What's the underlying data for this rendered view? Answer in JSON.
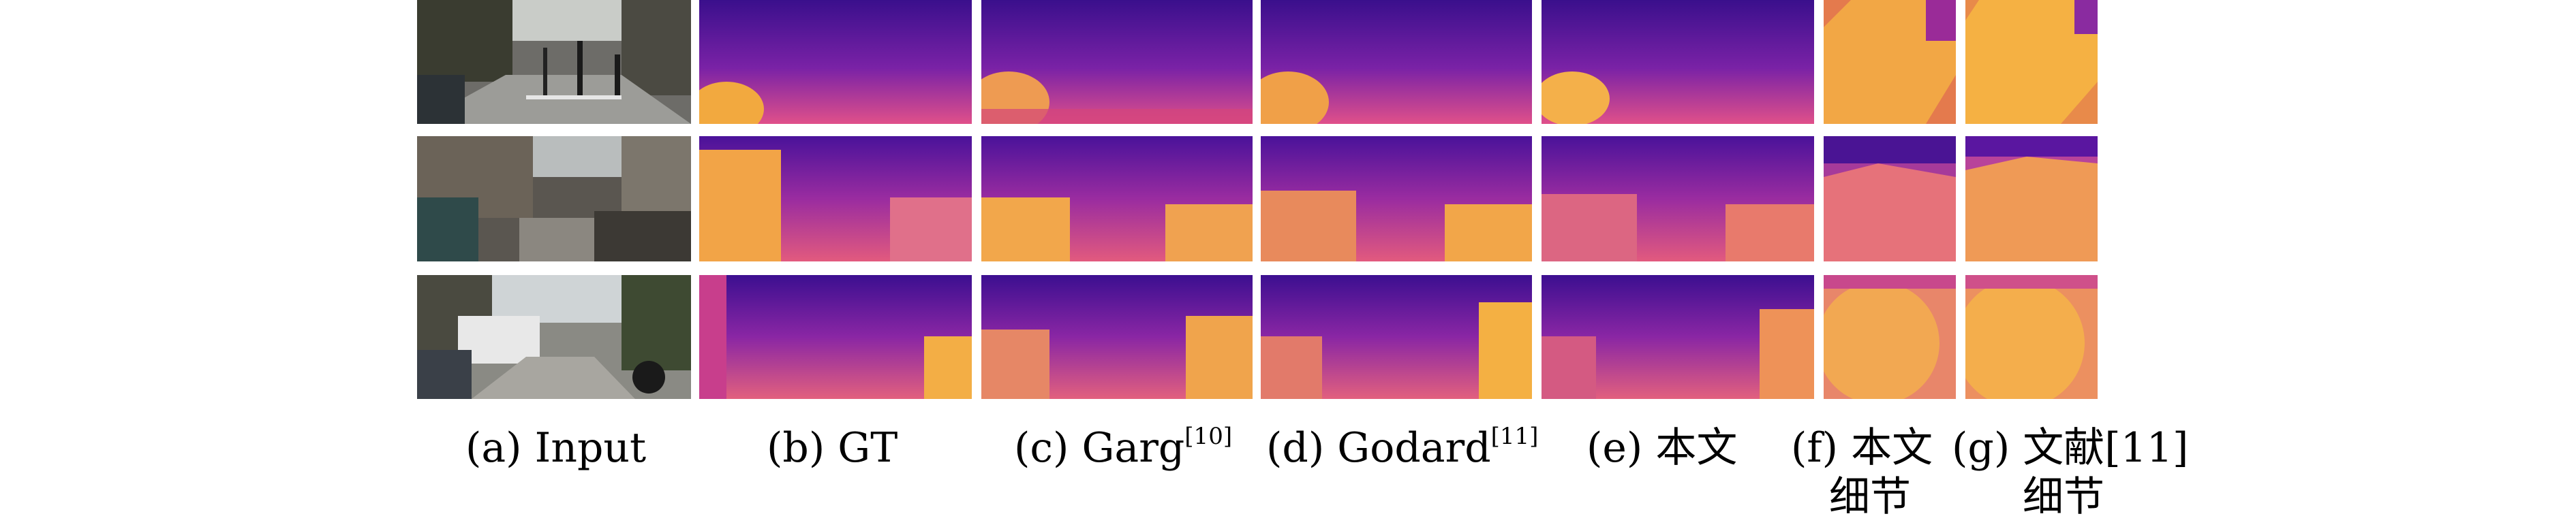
{
  "figure": {
    "columns": [
      {
        "label": "(a) Input"
      },
      {
        "label": "(b) GT"
      },
      {
        "label": "(c) Garg",
        "superscript": "[10]"
      },
      {
        "label": "(d) Godard",
        "superscript": "[11]"
      },
      {
        "label": "(e) 本文"
      },
      {
        "label": "(f) 本文",
        "line2": "细节"
      },
      {
        "label": "(g) 文献[11]",
        "line2": "细节"
      }
    ],
    "rows": [
      {
        "scene": "street-crosswalk-cyclists"
      },
      {
        "scene": "street-parked-cars-bicycles"
      },
      {
        "scene": "street-parked-cars-trees"
      }
    ],
    "colormap": "plasma",
    "colors": {
      "far": "#2a0e78",
      "mid": "#b2319a",
      "near": "#f6b23c"
    }
  }
}
